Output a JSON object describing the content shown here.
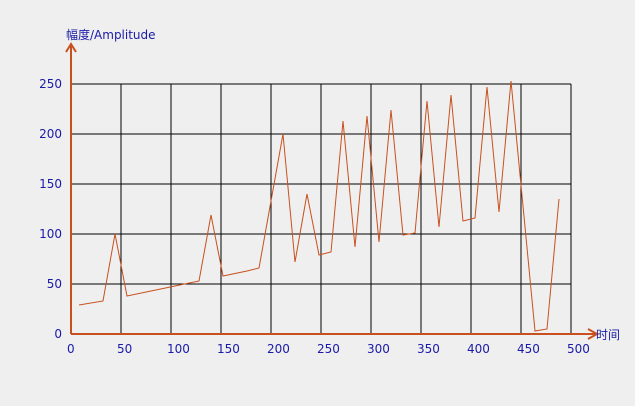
{
  "chart_data": {
    "type": "line",
    "title": "",
    "ylabel": "幅度/Amplitude",
    "xlabel": "时间",
    "xlim": [
      0,
      500
    ],
    "ylim": [
      0,
      250
    ],
    "x_ticks": [
      0,
      50,
      100,
      150,
      200,
      250,
      300,
      350,
      400,
      450,
      500
    ],
    "y_ticks": [
      0,
      50,
      100,
      150,
      200,
      250
    ],
    "grid": true,
    "legend": "none",
    "colors": {
      "line": "#c8501e",
      "axis": "#c8501e",
      "grid": "#000000",
      "labels": "#1a1aa8"
    },
    "series": [
      {
        "x": [
          8,
          32,
          44,
          56,
          80,
          104,
          128,
          140,
          152,
          176,
          188,
          212,
          224,
          236,
          248,
          260,
          272,
          284,
          296,
          308,
          320,
          332,
          344,
          356,
          368,
          380,
          392,
          404,
          416,
          428,
          440,
          464,
          476,
          488
        ],
        "y": [
          29,
          33,
          100,
          38,
          43,
          48,
          53,
          119,
          58,
          63,
          66,
          200,
          72,
          140,
          79,
          82,
          213,
          87,
          218,
          92,
          224,
          99,
          101,
          233,
          107,
          239,
          113,
          116,
          247,
          122,
          253,
          3,
          5,
          135
        ]
      }
    ]
  }
}
